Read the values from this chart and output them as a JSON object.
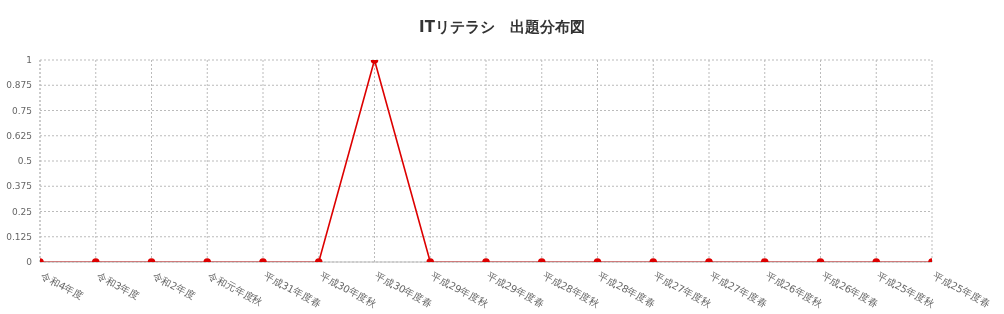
{
  "chart_data": {
    "type": "line",
    "title": "ITリテラシ　出題分布図",
    "categories": [
      "令和4年度",
      "令和3年度",
      "令和2年度",
      "令和元年度秋",
      "平成31年度春",
      "平成30年度秋",
      "平成30年度春",
      "平成29年度秋",
      "平成29年度春",
      "平成28年度秋",
      "平成28年度春",
      "平成27年度秋",
      "平成27年度春",
      "平成26年度秋",
      "平成26年度春",
      "平成25年度秋",
      "平成25年度春"
    ],
    "series": [
      {
        "color": "#dd0000",
        "values": [
          0,
          0,
          0,
          0,
          0,
          0,
          1,
          0,
          0,
          0,
          0,
          0,
          0,
          0,
          0,
          0,
          0
        ]
      }
    ],
    "ylim": [
      0,
      1
    ],
    "yticks": [
      0,
      0.125,
      0.25,
      0.375,
      0.5,
      0.625,
      0.75,
      0.875,
      1
    ],
    "grid": true,
    "marker": "circle",
    "legend": false
  }
}
